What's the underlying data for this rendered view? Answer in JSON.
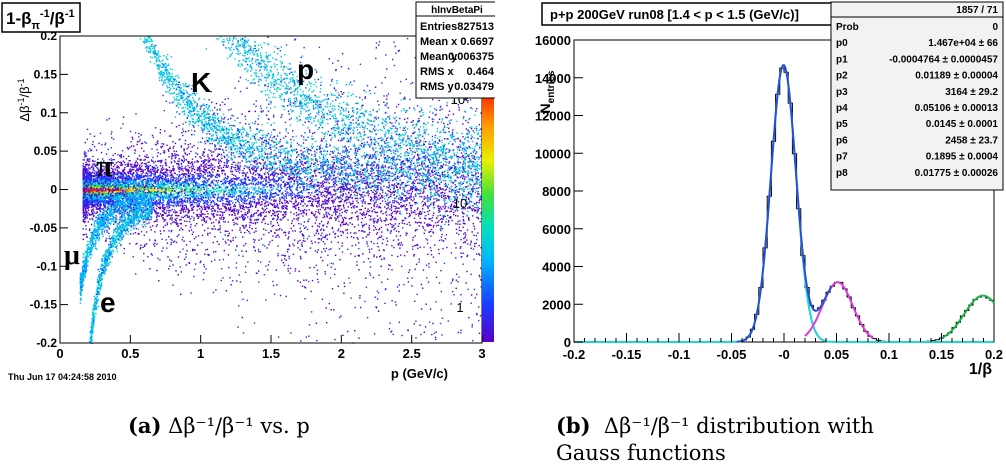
{
  "left_panel": {
    "title": "1-β_π^-1/β^-1",
    "ylabel": "Δβ^-1/β^-1",
    "xlabel": "p (GeV/c)",
    "timestamp": "Thu Jun 17 04:24:58 2010",
    "xticks": [
      "0",
      "0.5",
      "1",
      "1.5",
      "2",
      "2.5",
      "3"
    ],
    "yticks": [
      "0.2",
      "0.15",
      "0.1",
      "0.05",
      "0",
      "-0.05",
      "-0.1",
      "-0.15",
      "-0.2"
    ],
    "particle_labels": [
      "π",
      "K",
      "p",
      "μ",
      "e"
    ],
    "colorbar_ticks": [
      "10²",
      "10",
      "1"
    ],
    "stats": {
      "name": "hInvBetaPi",
      "rows": [
        {
          "k": "Entries",
          "v": "827513"
        },
        {
          "k": "Mean x",
          "v": "0.6697"
        },
        {
          "k": "Mean y",
          "v": "0.006375"
        },
        {
          "k": "RMS x",
          "v": "0.464"
        },
        {
          "k": "RMS y",
          "v": "0.03479"
        }
      ]
    }
  },
  "right_panel": {
    "title": "p+p 200GeV run08 [1.4 < p < 1.5 (GeV/c)]",
    "ylabel": "N_entries",
    "xlabel": "1/β",
    "xticks": [
      "-0.2",
      "-0.15",
      "-0.1",
      "-0.05",
      "-0",
      "0.05",
      "0.1",
      "0.15",
      "0.2"
    ],
    "yticks": [
      "0",
      "2000",
      "4000",
      "6000",
      "8000",
      "10000",
      "12000",
      "14000",
      "16000"
    ],
    "fit_box": {
      "header_right": "1857 / 71",
      "rows": [
        {
          "k": "Prob",
          "v": "0"
        },
        {
          "k": "p0",
          "v": "1.467e+04 ± 66"
        },
        {
          "k": "p1",
          "v": "-0.0004764 ± 0.0000457"
        },
        {
          "k": "p2",
          "v": "0.01189 ± 0.00004"
        },
        {
          "k": "p3",
          "v": "3164 ± 29.2"
        },
        {
          "k": "p4",
          "v": "0.05106 ± 0.00013"
        },
        {
          "k": "p5",
          "v": "0.0145 ± 0.0001"
        },
        {
          "k": "p6",
          "v": "2458 ± 23.7"
        },
        {
          "k": "p7",
          "v": "0.1895 ± 0.0004"
        },
        {
          "k": "p8",
          "v": "0.01775 ± 0.00026"
        }
      ]
    }
  },
  "captions": {
    "a_label": "(a)",
    "a_text": "Δβ⁻¹/β⁻¹ vs. p",
    "b_label": "(b)",
    "b_line1": "Δβ⁻¹/β⁻¹ distribution with",
    "b_line2": "Gauss functions"
  },
  "colors": {
    "total_fit": "#2a4fd6",
    "pion_fit": "#1fd6d6",
    "kaon_fit": "#d63fd6",
    "proton_fit": "#22b24c",
    "histogram": "#000000"
  },
  "chart_data": [
    {
      "type": "heatmap",
      "title": "1-β_π^-1/β^-1",
      "xlabel": "p (GeV/c)",
      "ylabel": "Δβ^-1/β^-1",
      "xlim": [
        0,
        3
      ],
      "ylim": [
        -0.2,
        0.2
      ],
      "colorbar": "log",
      "bands": [
        "π",
        "K",
        "p",
        "μ",
        "e"
      ]
    },
    {
      "type": "bar",
      "title": "p+p 200GeV run08 [1.4 < p < 1.5 (GeV/c)]",
      "xlabel": "1/β",
      "ylabel": "N_entries",
      "xlim": [
        -0.2,
        0.2
      ],
      "ylim": [
        0,
        16000
      ],
      "gauss_fits": [
        {
          "A": 14670,
          "mu": -0.0004764,
          "sigma": 0.01189
        },
        {
          "A": 3164,
          "mu": 0.05106,
          "sigma": 0.0145
        },
        {
          "A": 2458,
          "mu": 0.1895,
          "sigma": 0.01775
        }
      ]
    }
  ]
}
